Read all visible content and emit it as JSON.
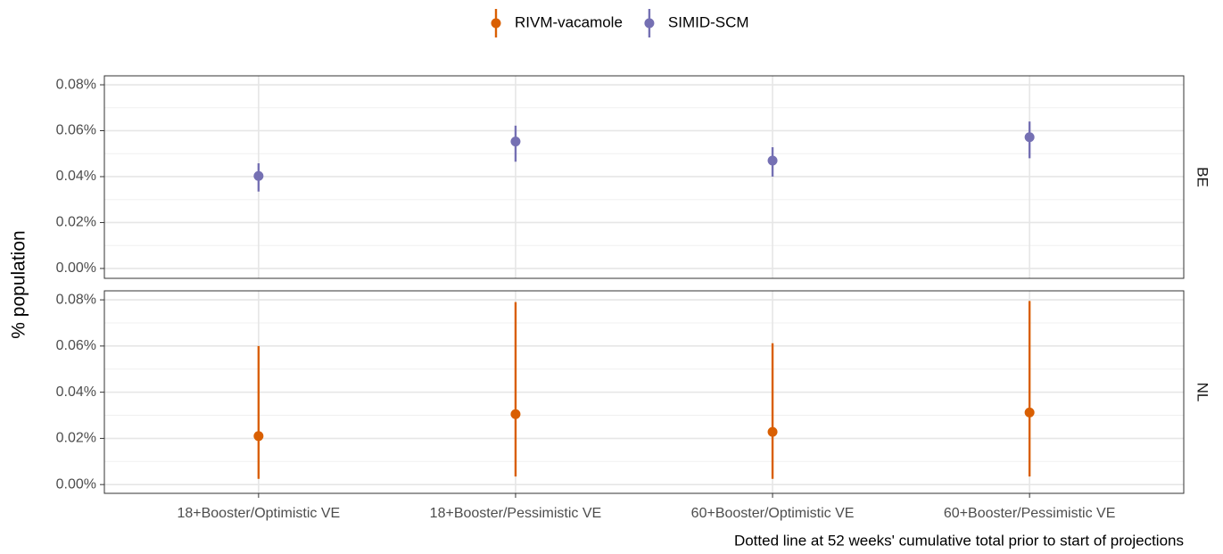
{
  "chart_data": [
    {
      "type": "pointrange",
      "facet": "BE",
      "ylabel": "% population",
      "categories": [
        "18+Booster/Optimistic VE",
        "18+Booster/Pessimistic VE",
        "60+Booster/Optimistic VE",
        "60+Booster/Pessimistic VE"
      ],
      "series": [
        {
          "name": "SIMID-SCM",
          "color": "#7570b3",
          "values": [
            0.0403,
            0.0553,
            0.047,
            0.0572
          ],
          "lower": [
            0.0335,
            0.0465,
            0.04,
            0.048
          ],
          "upper": [
            0.0458,
            0.0622,
            0.0528,
            0.064
          ]
        }
      ],
      "ylim": [
        -0.0043,
        0.0839
      ],
      "yticks": [
        {
          "value": 0,
          "label": "0.00%"
        },
        {
          "value": 0.02,
          "label": "0.02%"
        },
        {
          "value": 0.04,
          "label": "0.04%"
        },
        {
          "value": 0.06,
          "label": "0.06%"
        },
        {
          "value": 0.08,
          "label": "0.08%"
        }
      ],
      "grid": true
    },
    {
      "type": "pointrange",
      "facet": "NL",
      "caption": "Dotted line at 52 weeks' cumulative total prior to start of projections",
      "categories": [
        "18+Booster/Optimistic VE",
        "18+Booster/Pessimistic VE",
        "60+Booster/Optimistic VE",
        "60+Booster/Pessimistic VE"
      ],
      "series": [
        {
          "name": "RIVM-vacamole",
          "color": "#d95f02",
          "values": [
            0.021,
            0.0305,
            0.0228,
            0.0312
          ],
          "lower": [
            0.0025,
            0.0035,
            0.0025,
            0.0035
          ],
          "upper": [
            0.06,
            0.079,
            0.0612,
            0.0795
          ]
        }
      ],
      "ylim": [
        -0.0038,
        0.0839
      ],
      "yticks": [
        {
          "value": 0,
          "label": "0.00%"
        },
        {
          "value": 0.02,
          "label": "0.02%"
        },
        {
          "value": 0.04,
          "label": "0.04%"
        },
        {
          "value": 0.06,
          "label": "0.06%"
        },
        {
          "value": 0.08,
          "label": "0.08%"
        }
      ],
      "grid": true
    }
  ]
}
